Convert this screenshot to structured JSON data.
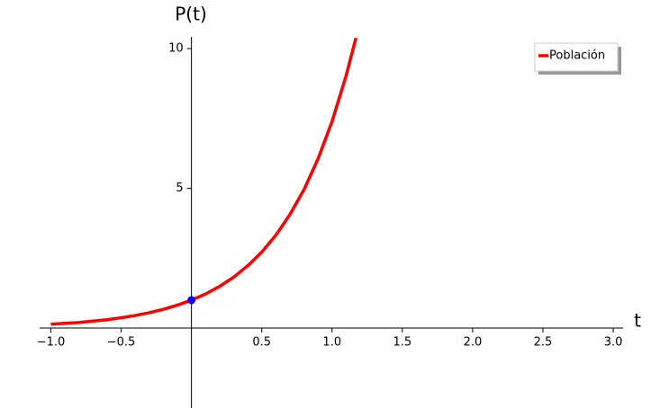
{
  "chart_data": {
    "type": "line",
    "xlabel": "t",
    "ylabel": "P(t)",
    "xlim": [
      -1.08,
      3.07
    ],
    "ylim": [
      -2.86,
      10.42
    ],
    "xticks": [
      {
        "value": -1.0,
        "label": "−1.0"
      },
      {
        "value": -0.5,
        "label": "−0.5"
      },
      0.5,
      {
        "value": 1.0,
        "label": "1.0"
      },
      1.5,
      {
        "value": 2.0,
        "label": "2.0"
      },
      2.5,
      {
        "value": 3.0,
        "label": "3.0"
      }
    ],
    "yticks": [
      5,
      10
    ],
    "series": [
      {
        "name": "Población",
        "color": "#ff0000",
        "x": [
          -1.0,
          -0.9,
          -0.8,
          -0.7,
          -0.6,
          -0.5,
          -0.4,
          -0.3,
          -0.2,
          -0.1,
          0,
          0.1,
          0.2,
          0.3,
          0.4,
          0.5,
          0.6,
          0.7,
          0.8,
          0.9,
          1.0,
          1.1,
          1.17
        ],
        "values": [
          0.14,
          0.17,
          0.2,
          0.25,
          0.3,
          0.37,
          0.45,
          0.55,
          0.67,
          0.82,
          1.0,
          1.22,
          1.49,
          1.82,
          2.23,
          2.72,
          3.32,
          4.06,
          4.95,
          6.05,
          7.39,
          9.03,
          10.38
        ]
      }
    ],
    "points": [
      {
        "x": 0,
        "y": 1,
        "color": "#0000ff"
      }
    ],
    "legend": "upper right"
  }
}
